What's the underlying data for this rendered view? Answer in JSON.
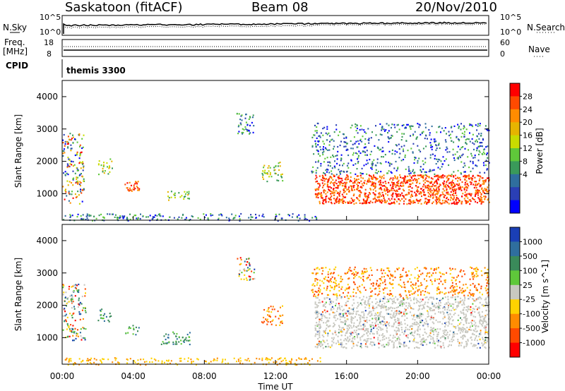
{
  "header": {
    "station": "Saskatoon (fitACF)",
    "beam": "Beam 08",
    "date": "20/Nov/2010"
  },
  "strips": {
    "nsky_label": "N.Sky",
    "nsearch_label": "N.Search",
    "nsky_ticks": [
      "10^5",
      "10^0"
    ],
    "nsearch_ticks": [
      "10^5",
      "10^0"
    ],
    "freq_label_1": "Freq.",
    "freq_label_2": "[MHz]",
    "freq_ticks": [
      "18",
      "8"
    ],
    "nave_label": "Nave",
    "nave_ticks": [
      "60",
      "0"
    ],
    "cpid_label": "CPID",
    "cpid_value": "themis 3300"
  },
  "chart_data": [
    {
      "type": "heatmap",
      "name": "Power",
      "ylabel": "Slant Range [km]",
      "xlabel": "Time UT",
      "xlim": [
        0,
        24
      ],
      "ylim": [
        180,
        4500
      ],
      "yticks": [
        "1000",
        "2000",
        "3000",
        "4000"
      ],
      "xticks": [
        "00:00",
        "04:00",
        "08:00",
        "12:00",
        "16:00",
        "20:00",
        "00:00"
      ],
      "colorbar": {
        "label": "Power [dB]",
        "ticks": [
          "28",
          "24",
          "20",
          "16",
          "12",
          "8",
          "4"
        ],
        "colors": [
          "#ff0000",
          "#ff4a00",
          "#ff8c00",
          "#e6b400",
          "#c8dc00",
          "#5fc83a",
          "#3a9a5a",
          "#2f6e9e",
          "#2a3fb5",
          "#0000ff"
        ]
      },
      "regions": [
        {
          "t": [
            0.0,
            1.2
          ],
          "r": [
            700,
            2900
          ],
          "level": "mixed"
        },
        {
          "t": [
            2.0,
            2.8
          ],
          "r": [
            1600,
            2100
          ],
          "level": "mid"
        },
        {
          "t": [
            3.5,
            4.3
          ],
          "r": [
            1100,
            1400
          ],
          "level": "high"
        },
        {
          "t": [
            5.8,
            7.2
          ],
          "r": [
            800,
            1100
          ],
          "level": "mid"
        },
        {
          "t": [
            9.8,
            10.8
          ],
          "r": [
            2800,
            3500
          ],
          "level": "low"
        },
        {
          "t": [
            11.2,
            12.4
          ],
          "r": [
            1400,
            2000
          ],
          "level": "mid"
        },
        {
          "t": [
            14.2,
            24.0
          ],
          "r": [
            700,
            1600
          ],
          "level": "high"
        },
        {
          "t": [
            14.0,
            24.0
          ],
          "r": [
            1600,
            3200
          ],
          "level": "low"
        },
        {
          "t": [
            0.0,
            14.5
          ],
          "r": [
            180,
            400
          ],
          "level": "low"
        }
      ]
    },
    {
      "type": "heatmap",
      "name": "Velocity",
      "ylabel": "Slant Range [km]",
      "xlabel": "Time UT",
      "xlim": [
        0,
        24
      ],
      "ylim": [
        180,
        4500
      ],
      "yticks": [
        "1000",
        "2000",
        "3000",
        "4000"
      ],
      "xticks": [
        "00:00",
        "04:00",
        "08:00",
        "12:00",
        "16:00",
        "20:00",
        "00:00"
      ],
      "colorbar": {
        "label": "Velocity [m s^-1]",
        "ticks": [
          "1000",
          "500",
          "100",
          "25",
          "-25",
          "-100",
          "-500",
          "-1000"
        ],
        "colors": [
          "#1a3fb5",
          "#2f6e9e",
          "#3a8a5a",
          "#5fc83a",
          "#c8c8c0",
          "#ffd200",
          "#ff8c00",
          "#ff4a00",
          "#ff0000"
        ]
      },
      "regions": [
        {
          "t": [
            0.0,
            1.3
          ],
          "r": [
            900,
            2700
          ],
          "level": "mixed"
        },
        {
          "t": [
            2.0,
            2.8
          ],
          "r": [
            1500,
            1900
          ],
          "level": "green"
        },
        {
          "t": [
            3.5,
            4.3
          ],
          "r": [
            1100,
            1400
          ],
          "level": "green"
        },
        {
          "t": [
            5.5,
            7.5
          ],
          "r": [
            800,
            1200
          ],
          "level": "green"
        },
        {
          "t": [
            9.8,
            10.8
          ],
          "r": [
            2800,
            3500
          ],
          "level": "mixed"
        },
        {
          "t": [
            11.2,
            12.4
          ],
          "r": [
            1400,
            2000
          ],
          "level": "orange"
        },
        {
          "t": [
            14.2,
            24.0
          ],
          "r": [
            700,
            2300
          ],
          "level": "grey"
        },
        {
          "t": [
            14.0,
            24.0
          ],
          "r": [
            2300,
            3200
          ],
          "level": "orange"
        },
        {
          "t": [
            0.0,
            14.5
          ],
          "r": [
            180,
            400
          ],
          "level": "yellow"
        }
      ]
    }
  ]
}
